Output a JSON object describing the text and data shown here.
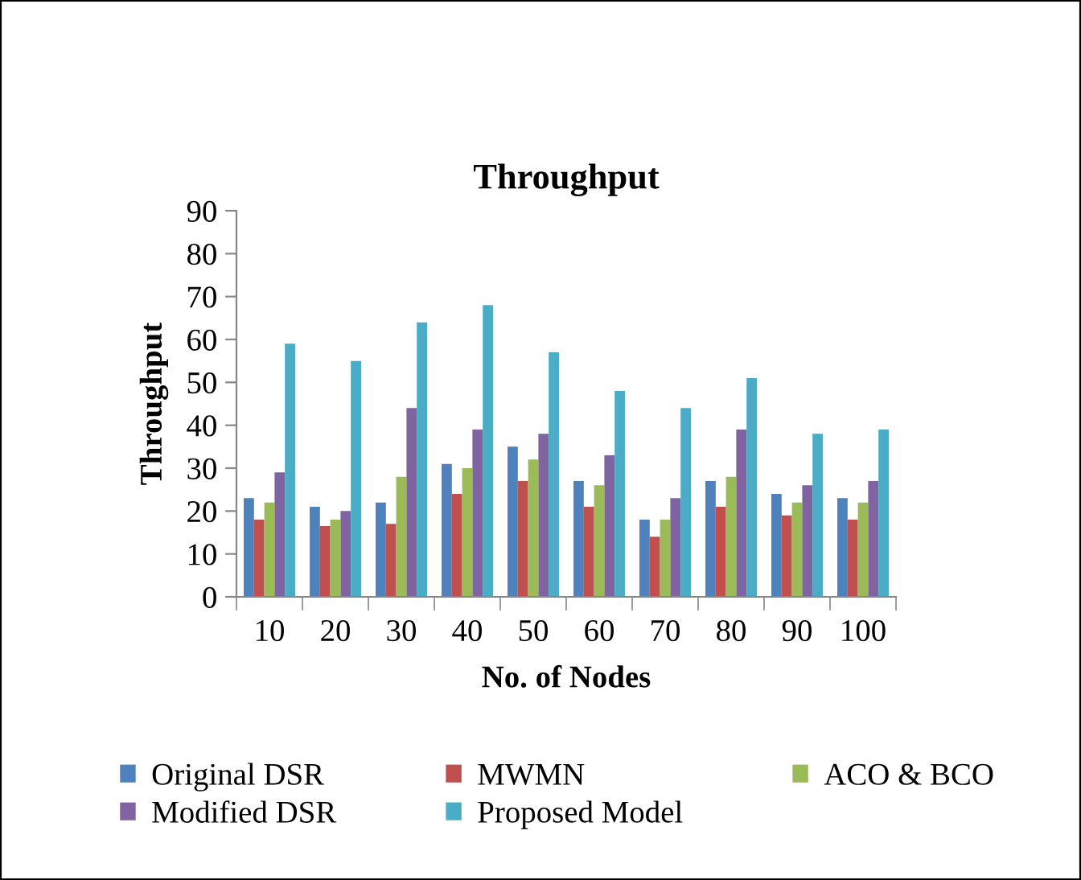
{
  "chart_data": {
    "type": "bar",
    "title": "Throughput",
    "xlabel": "No. of Nodes",
    "ylabel": "Throughput",
    "categories": [
      "10",
      "20",
      "30",
      "40",
      "50",
      "60",
      "70",
      "80",
      "90",
      "100"
    ],
    "series": [
      {
        "name": "Original DSR",
        "color": "#4f81bd",
        "values": [
          23,
          21,
          22,
          31,
          35,
          27,
          18,
          27,
          24,
          23
        ]
      },
      {
        "name": "MWMN",
        "color": "#c0504d",
        "values": [
          18,
          16.5,
          17,
          24,
          27,
          21,
          14,
          21,
          19,
          18
        ]
      },
      {
        "name": "ACO & BCO",
        "color": "#9bbb59",
        "values": [
          22,
          18,
          28,
          30,
          32,
          26,
          18,
          28,
          22,
          22
        ]
      },
      {
        "name": "Modified DSR",
        "color": "#8064a2",
        "values": [
          29,
          20,
          44,
          39,
          38,
          33,
          23,
          39,
          26,
          27
        ]
      },
      {
        "name": "Proposed Model",
        "color": "#4bacc6",
        "values": [
          59,
          55,
          64,
          68,
          57,
          48,
          44,
          51,
          38,
          39
        ]
      }
    ],
    "ylim": [
      0,
      90
    ],
    "yticks": [
      0,
      10,
      20,
      30,
      40,
      50,
      60,
      70,
      80,
      90
    ],
    "grid": false,
    "legend": "bottom"
  }
}
